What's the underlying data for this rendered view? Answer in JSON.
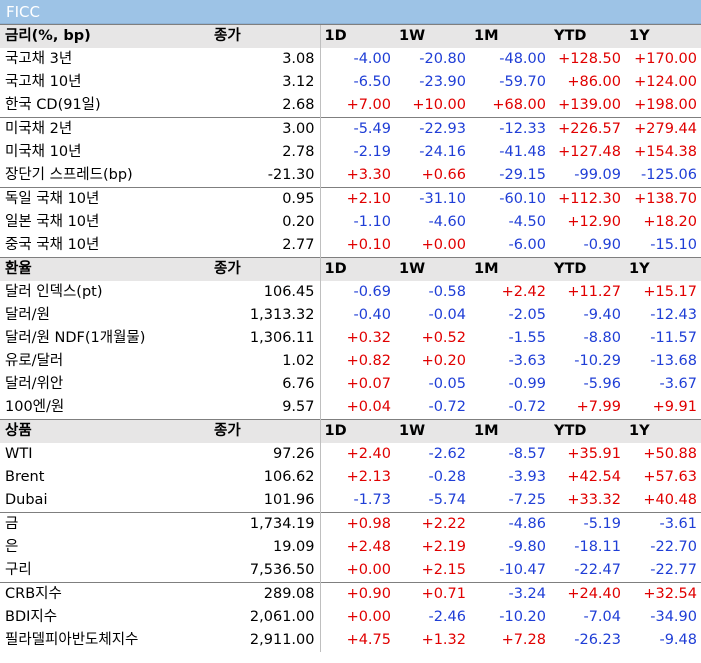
{
  "title": "FICC",
  "colors": {
    "title_bg": "#9dc3e6",
    "header_bg": "#e7e6e6",
    "positive": "#e00000",
    "negative": "#1f3ed6"
  },
  "columns": [
    "1D",
    "1W",
    "1M",
    "YTD",
    "1Y"
  ],
  "sections": [
    {
      "header_label": "금리(%, bp)",
      "close_label": "종가",
      "groups": [
        [
          {
            "label": "국고채 3년",
            "close": "3.08",
            "values": [
              "-4.00",
              "-20.80",
              "-48.00",
              "+128.50",
              "+170.00"
            ]
          },
          {
            "label": "국고채 10년",
            "close": "3.12",
            "values": [
              "-6.50",
              "-23.90",
              "-59.70",
              "+86.00",
              "+124.00"
            ]
          },
          {
            "label": "한국 CD(91일)",
            "close": "2.68",
            "values": [
              "+7.00",
              "+10.00",
              "+68.00",
              "+139.00",
              "+198.00"
            ]
          }
        ],
        [
          {
            "label": "미국채 2년",
            "close": "3.00",
            "values": [
              "-5.49",
              "-22.93",
              "-12.33",
              "+226.57",
              "+279.44"
            ]
          },
          {
            "label": "미국채 10년",
            "close": "2.78",
            "values": [
              "-2.19",
              "-24.16",
              "-41.48",
              "+127.48",
              "+154.38"
            ]
          },
          {
            "label": "장단기 스프레드(bp)",
            "close": "-21.30",
            "values": [
              "+3.30",
              "+0.66",
              "-29.15",
              "-99.09",
              "-125.06"
            ]
          }
        ],
        [
          {
            "label": "독일 국채 10년",
            "close": "0.95",
            "values": [
              "+2.10",
              "-31.10",
              "-60.10",
              "+112.30",
              "+138.70"
            ]
          },
          {
            "label": "일본 국채 10년",
            "close": "0.20",
            "values": [
              "-1.10",
              "-4.60",
              "-4.50",
              "+12.90",
              "+18.20"
            ]
          },
          {
            "label": "중국 국채 10년",
            "close": "2.77",
            "values": [
              "+0.10",
              "+0.00",
              "-6.00",
              "-0.90",
              "-15.10"
            ]
          }
        ]
      ]
    },
    {
      "header_label": "환율",
      "close_label": "종가",
      "groups": [
        [
          {
            "label": "달러 인덱스(pt)",
            "close": "106.45",
            "values": [
              "-0.69",
              "-0.58",
              "+2.42",
              "+11.27",
              "+15.17"
            ]
          },
          {
            "label": "달러/원",
            "close": "1,313.32",
            "values": [
              "-0.40",
              "-0.04",
              "-2.05",
              "-9.40",
              "-12.43"
            ]
          },
          {
            "label": "달러/원 NDF(1개월물)",
            "close": "1,306.11",
            "values": [
              "+0.32",
              "+0.52",
              "-1.55",
              "-8.80",
              "-11.57"
            ]
          },
          {
            "label": "유로/달러",
            "close": "1.02",
            "values": [
              "+0.82",
              "+0.20",
              "-3.63",
              "-10.29",
              "-13.68"
            ]
          },
          {
            "label": "달러/위안",
            "close": "6.76",
            "values": [
              "+0.07",
              "-0.05",
              "-0.99",
              "-5.96",
              "-3.67"
            ]
          },
          {
            "label": "100엔/원",
            "close": "9.57",
            "values": [
              "+0.04",
              "-0.72",
              "-0.72",
              "+7.99",
              "+9.91"
            ]
          }
        ]
      ]
    },
    {
      "header_label": "상품",
      "close_label": "종가",
      "groups": [
        [
          {
            "label": "WTI",
            "close": "97.26",
            "values": [
              "+2.40",
              "-2.62",
              "-8.57",
              "+35.91",
              "+50.88"
            ]
          },
          {
            "label": "Brent",
            "close": "106.62",
            "values": [
              "+2.13",
              "-0.28",
              "-3.93",
              "+42.54",
              "+57.63"
            ]
          },
          {
            "label": "Dubai",
            "close": "101.96",
            "values": [
              "-1.73",
              "-5.74",
              "-7.25",
              "+33.32",
              "+40.48"
            ]
          }
        ],
        [
          {
            "label": "금",
            "close": "1,734.19",
            "values": [
              "+0.98",
              "+2.22",
              "-4.86",
              "-5.19",
              "-3.61"
            ]
          },
          {
            "label": "은",
            "close": "19.09",
            "values": [
              "+2.48",
              "+2.19",
              "-9.80",
              "-18.11",
              "-22.70"
            ]
          },
          {
            "label": "구리",
            "close": "7,536.50",
            "values": [
              "+0.00",
              "+2.15",
              "-10.47",
              "-22.47",
              "-22.77"
            ]
          }
        ],
        [
          {
            "label": "CRB지수",
            "close": "289.08",
            "values": [
              "+0.90",
              "+0.71",
              "-3.24",
              "+24.40",
              "+32.54"
            ]
          },
          {
            "label": "BDI지수",
            "close": "2,061.00",
            "values": [
              "+0.00",
              "-2.46",
              "-10.20",
              "-7.04",
              "-34.90"
            ]
          },
          {
            "label": "필라델피아반도체지수",
            "close": "2,911.00",
            "values": [
              "+4.75",
              "+1.32",
              "+7.28",
              "-26.23",
              "-9.48"
            ]
          }
        ]
      ]
    }
  ]
}
